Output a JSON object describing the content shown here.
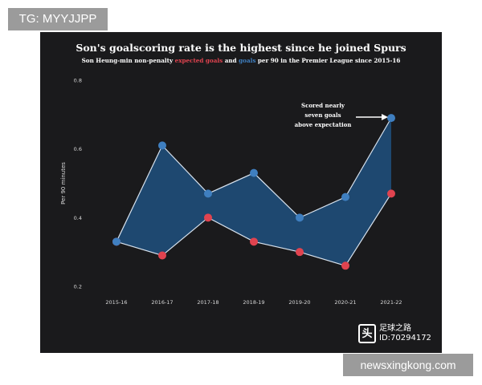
{
  "badges": {
    "top_left": "TG: MYYJJPP",
    "bottom_right": "newsxingkong.com"
  },
  "watermark": {
    "icon": "news-logo-icon",
    "name": "足球之路",
    "id": "ID:70294172"
  },
  "annotation": {
    "line1": "Scored nearly",
    "line2": "seven goals",
    "line3": "above expectation"
  },
  "chart_data": {
    "type": "line",
    "title": "Son's goalscoring rate is the highest since he joined Spurs",
    "subtitle": {
      "pre": "Son Heung-min non-penalty",
      "xg": "expected goals",
      "mid": "and",
      "goals": "goals",
      "post": "per 90 in the Premier League since 2015-16"
    },
    "ylabel": "Per 90 minutes",
    "xlabel": "",
    "categories": [
      "2015-16",
      "2016-17",
      "2017-18",
      "2018-19",
      "2019-20",
      "2020-21",
      "2021-22"
    ],
    "series": [
      {
        "name": "expected goals",
        "color": "#e0434f",
        "values": [
          0.33,
          0.29,
          0.4,
          0.33,
          0.3,
          0.26,
          0.47
        ]
      },
      {
        "name": "goals",
        "color": "#3f7fc0",
        "values": [
          0.33,
          0.61,
          0.47,
          0.53,
          0.4,
          0.46,
          0.69
        ]
      }
    ],
    "ylim": [
      0.2,
      0.8
    ],
    "yticks": [
      "0.2",
      "0.4",
      "0.6",
      "0.8"
    ],
    "grid": false,
    "fill_between": true,
    "fill_color": "#1f4e7a"
  }
}
